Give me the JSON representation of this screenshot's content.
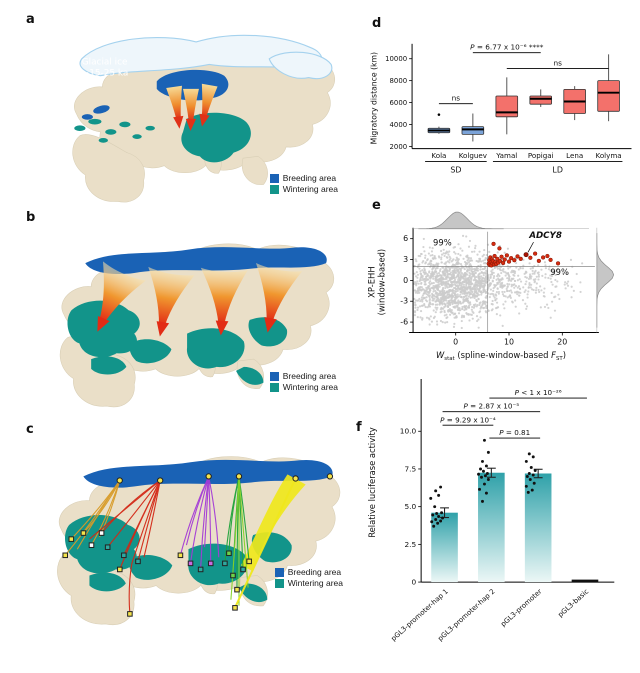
{
  "panels": {
    "a": {
      "letter": "a",
      "glacial_label": {
        "line1": "Glacial ice",
        "line2": "~15-25 ka"
      }
    },
    "b": {
      "letter": "b"
    },
    "c": {
      "letter": "c"
    },
    "d": {
      "letter": "d"
    },
    "e": {
      "letter": "e"
    },
    "f": {
      "letter": "f"
    }
  },
  "legend": {
    "breeding": "Breeding area",
    "wintering": "Wintering area"
  },
  "colors": {
    "breeding": "#1a62b5",
    "wintering": "#12948a",
    "land": "#eadfc8",
    "ice": "#eef6fb",
    "iceStroke": "#a5d2ee",
    "boxBlue": "#7ba3d8",
    "boxRed": "#f3716b",
    "grayPoint": "#cbcbcb",
    "redPoint": "#d62b10",
    "barTop": "#2fa1a9",
    "barBottom": "#ecf7f6",
    "trackOrange": "#d89b28",
    "trackRed": "#d32715",
    "trackPurple": "#a43bd6",
    "trackGreen": "#1fa33a",
    "trackLightGreen": "#86d22c",
    "trackYellow": "#efe71c"
  },
  "chart_data": [
    {
      "panel": "d",
      "type": "box",
      "ylabel": "Migratory distance (km)",
      "ylim": [
        1800,
        11000
      ],
      "yticks": [
        2000,
        4000,
        6000,
        8000,
        10000
      ],
      "categories": [
        "Kola",
        "Kolguev",
        "Yamal",
        "Popigai",
        "Lena",
        "Kolyma"
      ],
      "groups": [
        {
          "label": "SD",
          "span": [
            0,
            1
          ]
        },
        {
          "label": "LD",
          "span": [
            2,
            5
          ]
        }
      ],
      "boxes": [
        {
          "name": "Kola",
          "group": "SD",
          "whislo": 3150,
          "q1": 3250,
          "med": 3450,
          "q3": 3650,
          "whishi": 3800,
          "outliers": [
            4900
          ]
        },
        {
          "name": "Kolguev",
          "group": "SD",
          "whislo": 2450,
          "q1": 3100,
          "med": 3550,
          "q3": 3800,
          "whishi": 5000,
          "outliers": []
        },
        {
          "name": "Yamal",
          "group": "LD",
          "whislo": 3100,
          "q1": 4700,
          "med": 5100,
          "q3": 6600,
          "whishi": 8300,
          "outliers": []
        },
        {
          "name": "Popigai",
          "group": "LD",
          "whislo": 5600,
          "q1": 5850,
          "med": 6350,
          "q3": 6600,
          "whishi": 7200,
          "outliers": []
        },
        {
          "name": "Lena",
          "group": "LD",
          "whislo": 4400,
          "q1": 5000,
          "med": 6100,
          "q3": 7200,
          "whishi": 7500,
          "outliers": []
        },
        {
          "name": "Kolyma",
          "group": "LD",
          "whislo": 4300,
          "q1": 5200,
          "med": 6900,
          "q3": 8000,
          "whishi": 10400,
          "outliers": []
        }
      ],
      "annotations": [
        {
          "text": "P = 6.77 x 10⁻⁶ ****",
          "from": 1,
          "to": 3,
          "level": 10550
        },
        {
          "text": "ns",
          "from": 0,
          "to": 1,
          "level": 5900
        },
        {
          "text": "ns",
          "from": 2,
          "to": 5,
          "level": 9100
        }
      ]
    },
    {
      "panel": "e",
      "type": "scatter",
      "ylabel_lines": [
        "XP-EHH",
        "(window-based)"
      ],
      "xlabel_parts": {
        "w": "W",
        "wsub": "stat",
        "mid": " (spline-window-based ",
        "f": "F",
        "fsub": "ST",
        "post": ")"
      },
      "xlim": [
        -8,
        25
      ],
      "ylim": [
        -7.5,
        7
      ],
      "xticks": [
        0,
        10,
        20
      ],
      "yticks": [
        -6,
        -3,
        0,
        3,
        6
      ],
      "threshold_x": 6,
      "threshold_y": 2,
      "labels": {
        "left_pct": "99%",
        "right_pct": "99%",
        "gene": "ADCY8"
      },
      "gray_clouds": [
        {
          "count": 1500,
          "center": [
            0,
            -0.6
          ],
          "spread": [
            4.6,
            2.4
          ],
          "seed": 7
        },
        {
          "count": 170,
          "center": [
            11,
            0
          ],
          "spread": [
            4.5,
            1.6
          ],
          "seed": 99
        },
        {
          "count": 60,
          "center": [
            17,
            -0.5
          ],
          "spread": [
            3.5,
            1.8
          ],
          "seed": 123
        }
      ],
      "densities": {
        "top": {
          "mu": 0.3,
          "sigma": 2.6,
          "height": 17
        },
        "right": {
          "mu": 0.8,
          "sigma": 1.7,
          "height": 17
        }
      },
      "red_points": [
        [
          6.2,
          2.4
        ],
        [
          6.3,
          2.9
        ],
        [
          6.4,
          2.2
        ],
        [
          6.5,
          3.3
        ],
        [
          6.6,
          2.6
        ],
        [
          6.7,
          2.15
        ],
        [
          6.8,
          3.0
        ],
        [
          6.9,
          2.45
        ],
        [
          7.0,
          2.8
        ],
        [
          7.1,
          5.25
        ],
        [
          7.2,
          2.3
        ],
        [
          7.3,
          3.5
        ],
        [
          7.4,
          2.6
        ],
        [
          7.6,
          2.35
        ],
        [
          7.8,
          3.1
        ],
        [
          8.0,
          2.55
        ],
        [
          8.2,
          4.6
        ],
        [
          8.3,
          2.8
        ],
        [
          8.6,
          3.4
        ],
        [
          8.9,
          2.5
        ],
        [
          9.2,
          3.0
        ],
        [
          9.6,
          3.6
        ],
        [
          10.0,
          2.7
        ],
        [
          10.4,
          3.2
        ],
        [
          11.0,
          2.9
        ],
        [
          11.6,
          3.45
        ],
        [
          12.2,
          3.1
        ],
        [
          14.0,
          3.25
        ],
        [
          14.9,
          3.85
        ],
        [
          15.6,
          2.8
        ],
        [
          16.4,
          3.3
        ],
        [
          17.2,
          3.5
        ],
        [
          17.8,
          2.95
        ],
        [
          19.2,
          2.45
        ]
      ],
      "adcy8_point": [
        13.2,
        3.7
      ]
    },
    {
      "panel": "f",
      "type": "bar",
      "ylabel": "Relative luciferase activity",
      "ylim": [
        0,
        13.2
      ],
      "ytick_values": [
        0,
        2.5,
        5,
        7.5,
        10
      ],
      "ytick_labels": [
        "0",
        "2.5",
        "5.0",
        "7.5",
        "10.0"
      ],
      "categories": [
        "pGL3-promoter-hap 1",
        "pGL3-promoter-hap 2",
        "pGL3-promoter",
        "pGL3-basic"
      ],
      "values": [
        4.6,
        7.25,
        7.2,
        0.08
      ],
      "errors": [
        0.32,
        0.3,
        0.28,
        0.02
      ],
      "jitter": [
        [
          [
            -11,
            3.7
          ],
          [
            -7,
            3.9
          ],
          [
            -13,
            4.0
          ],
          [
            -4,
            4.05
          ],
          [
            -9,
            4.15
          ],
          [
            -2,
            4.25
          ],
          [
            -6,
            4.35
          ],
          [
            -12,
            4.45
          ],
          [
            -8,
            4.55
          ],
          [
            -3,
            4.6
          ],
          [
            -10,
            5.0
          ],
          [
            -14,
            5.55
          ],
          [
            -6,
            5.75
          ],
          [
            -9,
            6.05
          ],
          [
            -4,
            6.3
          ]
        ],
        [
          [
            -9,
            5.35
          ],
          [
            -5,
            5.9
          ],
          [
            -12,
            6.15
          ],
          [
            -7,
            6.5
          ],
          [
            -3,
            6.8
          ],
          [
            -10,
            6.95
          ],
          [
            -6,
            7.05
          ],
          [
            -13,
            7.15
          ],
          [
            -4,
            7.2
          ],
          [
            -8,
            7.35
          ],
          [
            -11,
            7.5
          ],
          [
            -5,
            7.7
          ],
          [
            -9,
            8.0
          ],
          [
            -3,
            8.6
          ],
          [
            -7,
            9.4
          ]
        ],
        [
          [
            -10,
            5.95
          ],
          [
            -6,
            6.1
          ],
          [
            -12,
            6.35
          ],
          [
            -4,
            6.55
          ],
          [
            -8,
            6.8
          ],
          [
            -11,
            7.0
          ],
          [
            -5,
            7.1
          ],
          [
            -9,
            7.2
          ],
          [
            -3,
            7.4
          ],
          [
            -7,
            7.6
          ],
          [
            -12,
            8.0
          ],
          [
            -5,
            8.3
          ],
          [
            -9,
            8.5
          ]
        ],
        []
      ],
      "annotations": [
        {
          "text": "P = 9.29 x 10⁻⁴",
          "from": 0,
          "to": 1,
          "level": 10.4
        },
        {
          "text": "P = 2.87 x 10⁻⁵",
          "from": 0,
          "to": 2,
          "level": 11.3
        },
        {
          "text": "P < 1 x 10⁻²⁶",
          "from": 1,
          "to": 3,
          "level": 12.2
        },
        {
          "text": "P = 0.81",
          "from": 1,
          "to": 2,
          "level": 9.55
        }
      ]
    }
  ]
}
